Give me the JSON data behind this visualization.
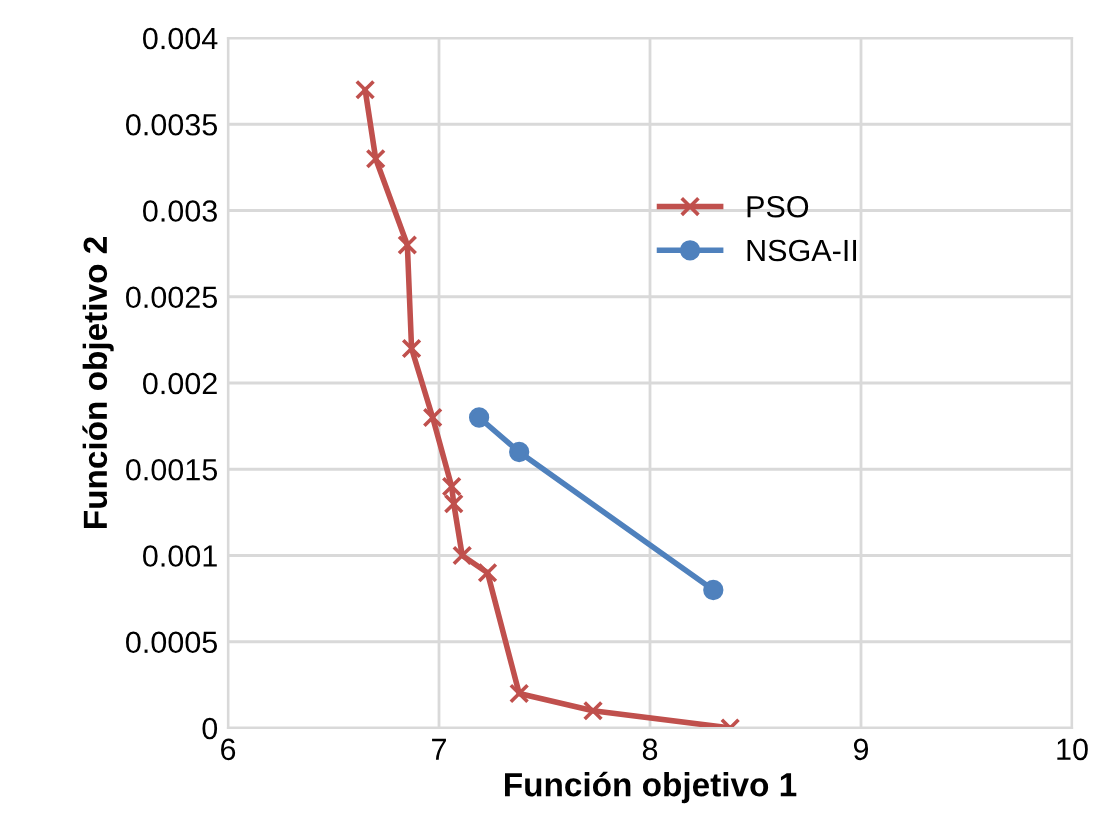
{
  "chart_data": {
    "type": "line",
    "xlabel": "Función objetivo 1",
    "ylabel": "Función objetivo 2",
    "xlim": [
      6,
      10
    ],
    "xticks": [
      6,
      7,
      8,
      9,
      10
    ],
    "ylim": [
      0,
      0.004
    ],
    "yticks": [
      0,
      0.0005,
      0.001,
      0.0015,
      0.002,
      0.0025,
      0.003,
      0.0035,
      0.004
    ],
    "grid": true,
    "legend": "right",
    "series": [
      {
        "name": "PSO",
        "color": "#c0504d",
        "marker": "cross",
        "x": [
          6.65,
          6.7,
          6.85,
          6.87,
          6.97,
          7.06,
          7.07,
          7.11,
          7.23,
          7.38,
          7.73,
          8.38
        ],
        "values": [
          0.0037,
          0.0033,
          0.0028,
          0.0022,
          0.0018,
          0.0014,
          0.0013,
          0.001,
          0.0009,
          0.0002,
          0.0001,
          0
        ]
      },
      {
        "name": "NSGA-II",
        "color": "#4f81bd",
        "marker": "circle",
        "x": [
          7.19,
          7.38,
          8.3
        ],
        "values": [
          0.0018,
          0.0016,
          0.0008
        ]
      }
    ]
  }
}
